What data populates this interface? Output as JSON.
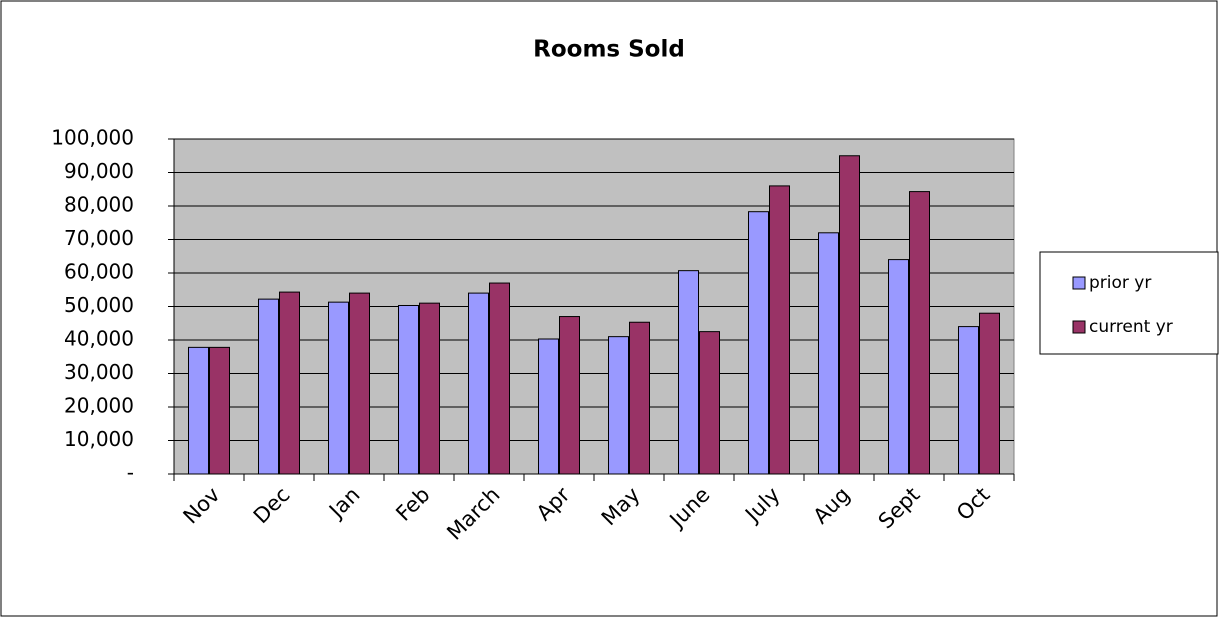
{
  "chart_data": {
    "type": "bar",
    "title": "Rooms Sold",
    "categories": [
      "Nov",
      "Dec",
      "Jan",
      "Feb",
      "March",
      "Apr",
      "May",
      "June",
      "July",
      "Aug",
      "Sept",
      "Oct"
    ],
    "series": [
      {
        "name": "prior yr",
        "color": "#9999ff",
        "values": [
          37800,
          52200,
          51300,
          50300,
          54000,
          40300,
          41000,
          60700,
          78300,
          72000,
          64000,
          44000
        ]
      },
      {
        "name": "current yr",
        "color": "#993366",
        "values": [
          37800,
          54300,
          54000,
          51000,
          57000,
          47000,
          45300,
          42500,
          86000,
          95000,
          84300,
          48000
        ]
      }
    ],
    "ylim": [
      0,
      100000
    ],
    "yticks": [
      {
        "value": 0,
        "label": "-"
      },
      {
        "value": 10000,
        "label": "10,000"
      },
      {
        "value": 20000,
        "label": "20,000"
      },
      {
        "value": 30000,
        "label": "30,000"
      },
      {
        "value": 40000,
        "label": "40,000"
      },
      {
        "value": 50000,
        "label": "50,000"
      },
      {
        "value": 60000,
        "label": "60,000"
      },
      {
        "value": 70000,
        "label": "70,000"
      },
      {
        "value": 80000,
        "label": "80,000"
      },
      {
        "value": 90000,
        "label": "90,000"
      },
      {
        "value": 100000,
        "label": "100,000"
      }
    ],
    "grid": true,
    "legend": "right",
    "plot_background": "#c0c0c0"
  }
}
